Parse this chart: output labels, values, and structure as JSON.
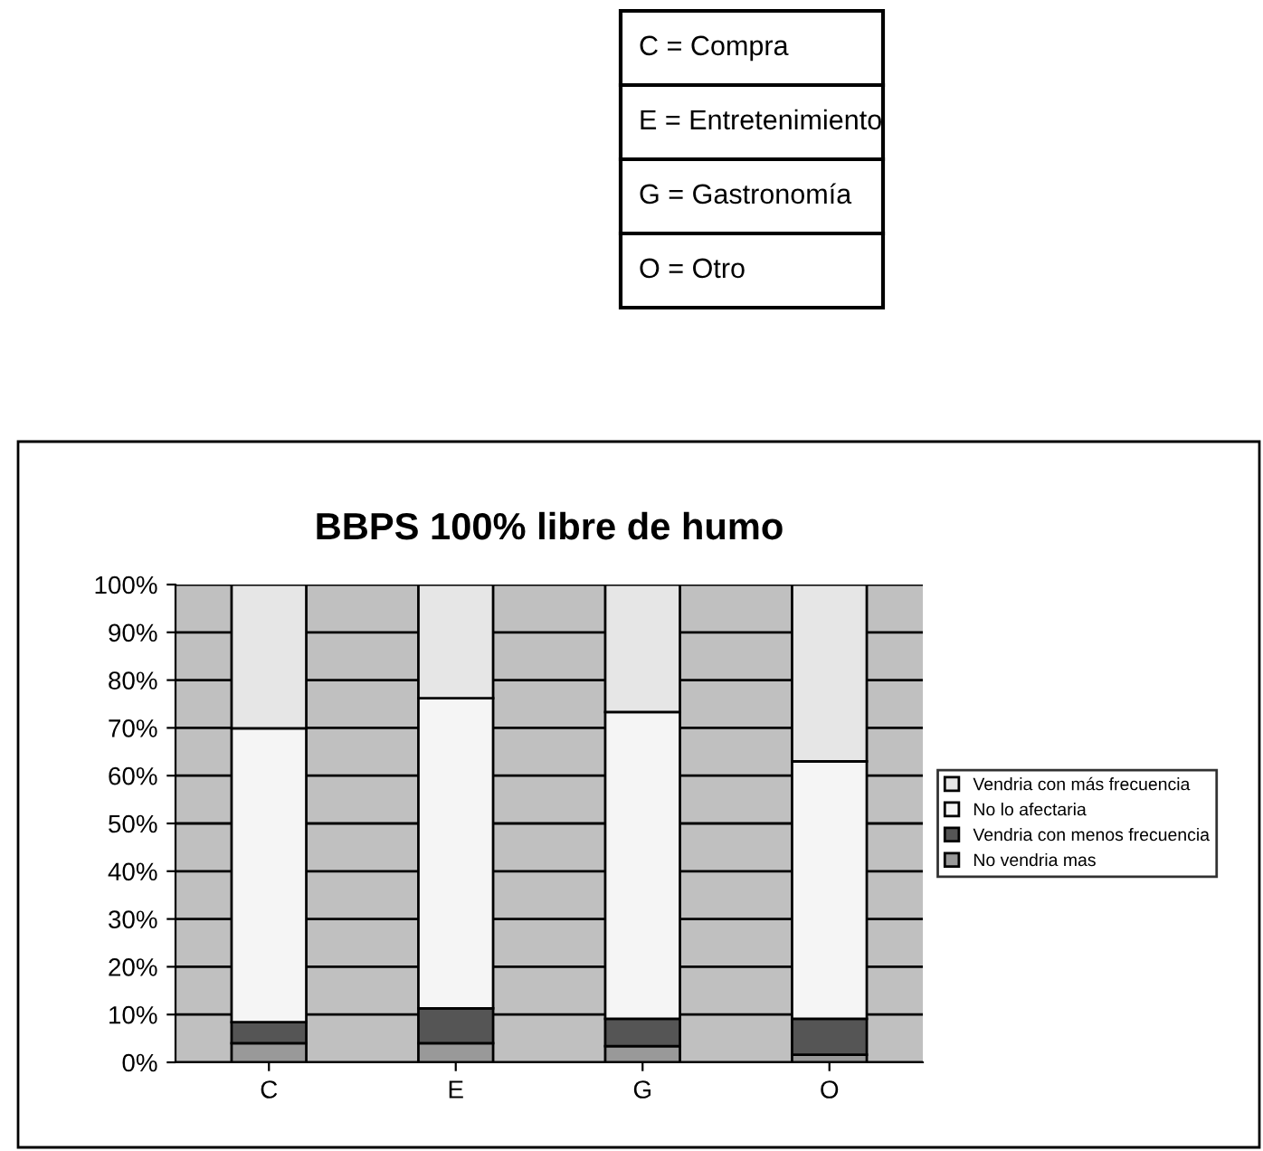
{
  "chart_data": {
    "type": "bar",
    "title": "BBPS 100% libre de humo",
    "stacked": true,
    "categories": [
      "C",
      "E",
      "G",
      "O"
    ],
    "series": [
      {
        "name": "No vendria mas",
        "color": "#999999",
        "values": [
          4.0,
          4.0,
          3.4,
          1.6
        ]
      },
      {
        "name": "Vendria con menos frecuencia",
        "color": "#555555",
        "values": [
          4.4,
          7.3,
          5.7,
          7.5
        ]
      },
      {
        "name": "No lo afectaria",
        "color": "#f5f5f5",
        "values": [
          61.5,
          64.9,
          64.2,
          53.9
        ]
      },
      {
        "name": "Vendria con más frecuencia",
        "color": "#e6e6e6",
        "values": [
          30.1,
          23.8,
          26.7,
          37.0
        ]
      }
    ],
    "ylim": [
      0,
      100
    ],
    "yticks": [
      {
        "value": 0,
        "label": "0%"
      },
      {
        "value": 10,
        "label": "10%"
      },
      {
        "value": 20,
        "label": "20%"
      },
      {
        "value": 30,
        "label": "30%"
      },
      {
        "value": 40,
        "label": "40%"
      },
      {
        "value": 50,
        "label": "50%"
      },
      {
        "value": 60,
        "label": "60%"
      },
      {
        "value": 70,
        "label": "70%"
      },
      {
        "value": 80,
        "label": "80%"
      },
      {
        "value": 90,
        "label": "90%"
      },
      {
        "value": 100,
        "label": "100%"
      }
    ],
    "grid": "y",
    "legend": "right",
    "annotations": [
      "C = Compra",
      "E = Entretenimiento",
      "G = Gastronomía",
      "O = Otro"
    ]
  }
}
